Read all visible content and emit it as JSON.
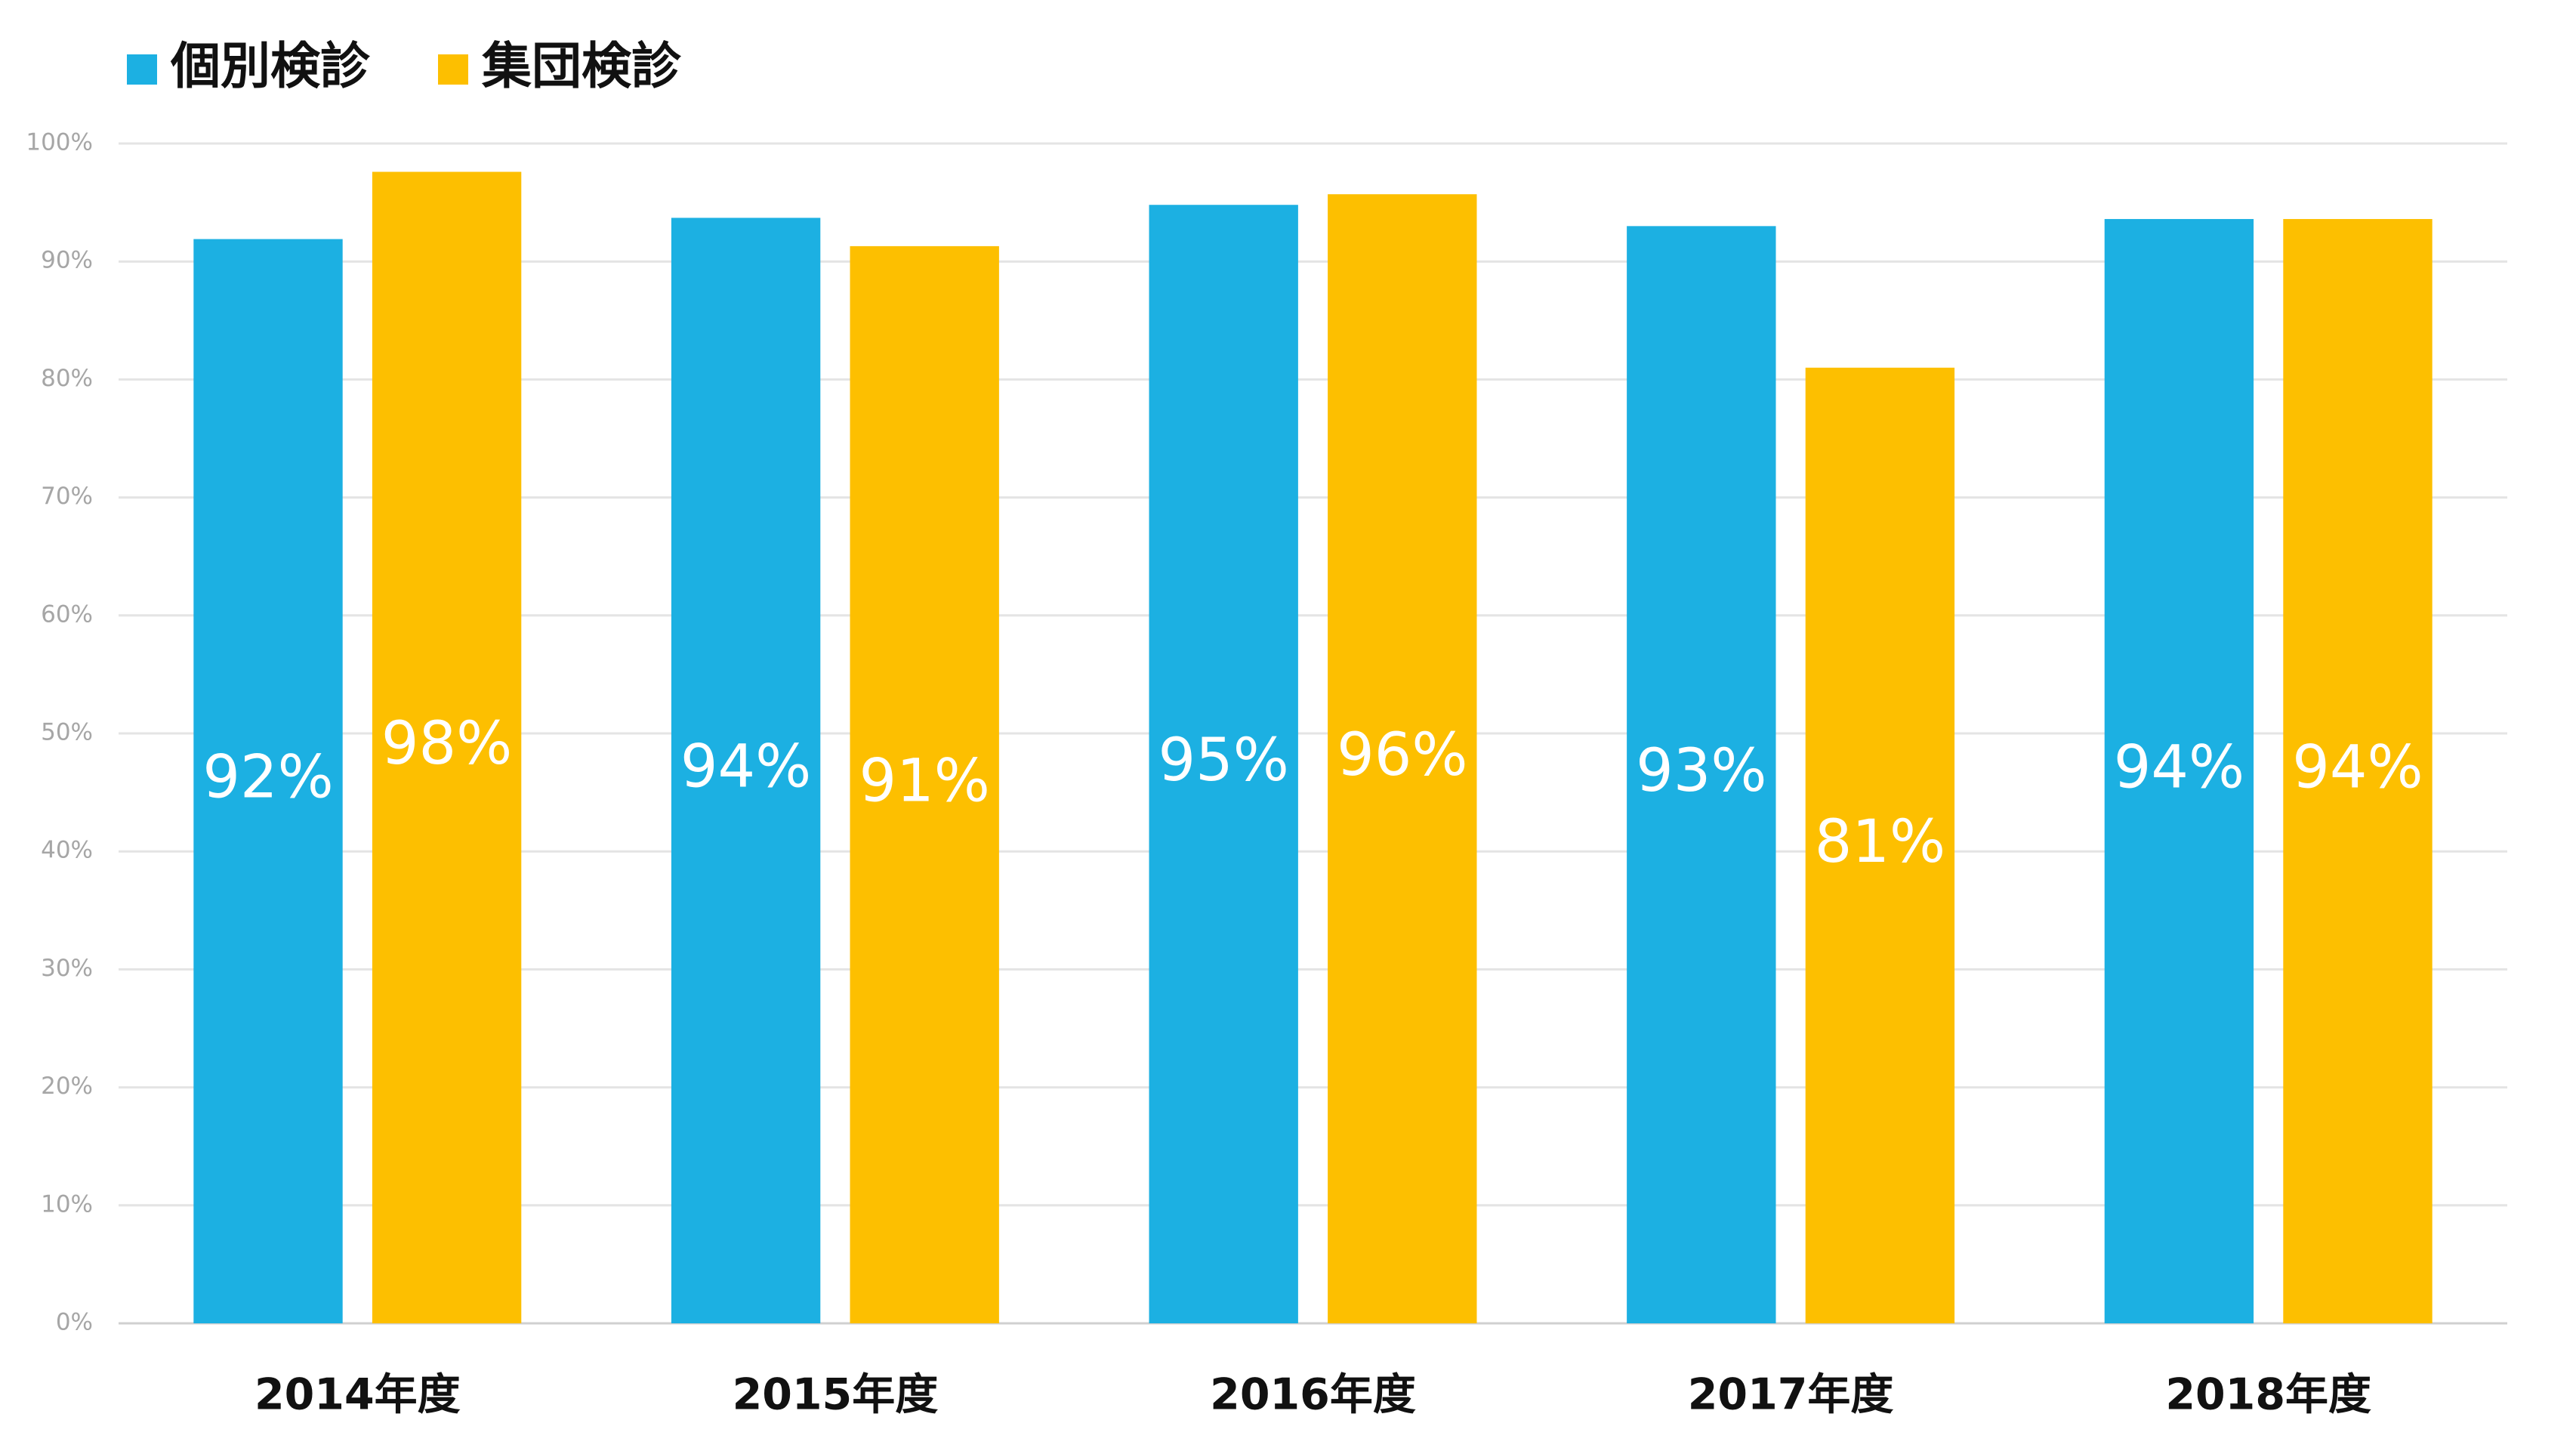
{
  "chart_data": {
    "type": "bar",
    "categories": [
      "2014年度",
      "2015年度",
      "2016年度",
      "2017年度",
      "2018年度"
    ],
    "series": [
      {
        "name": "個別検診",
        "color": "#1cb0e2",
        "values": [
          91.9,
          93.7,
          94.8,
          93.0,
          93.6
        ],
        "value_labels": [
          "92%",
          "94%",
          "95%",
          "93%",
          "94%"
        ]
      },
      {
        "name": "集団検診",
        "color": "#fdbf00",
        "values": [
          97.6,
          91.3,
          95.7,
          81.0,
          93.6
        ],
        "value_labels": [
          "98%",
          "91%",
          "96%",
          "81%",
          "94%"
        ]
      }
    ],
    "ylim": [
      0,
      100
    ],
    "yticks": [
      {
        "value": 0,
        "label": "0%"
      },
      {
        "value": 10,
        "label": "10%"
      },
      {
        "value": 20,
        "label": "20%"
      },
      {
        "value": 30,
        "label": "30%"
      },
      {
        "value": 40,
        "label": "40%"
      },
      {
        "value": 50,
        "label": "50%"
      },
      {
        "value": 60,
        "label": "60%"
      },
      {
        "value": 70,
        "label": "70%"
      },
      {
        "value": 80,
        "label": "80%"
      },
      {
        "value": 90,
        "label": "90%"
      },
      {
        "value": 100,
        "label": "100%"
      }
    ],
    "grid": true,
    "legend": "top-left"
  }
}
